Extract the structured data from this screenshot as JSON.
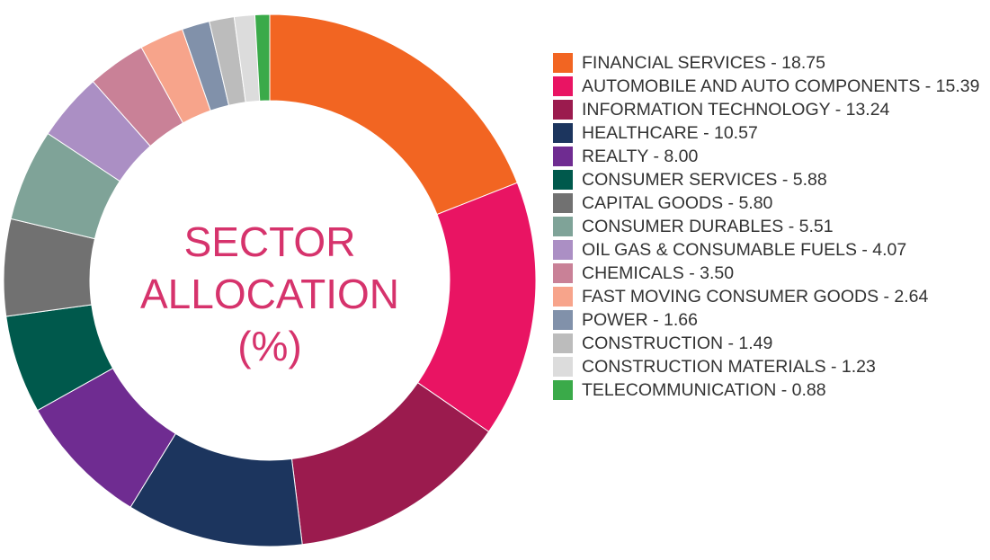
{
  "chart_data": {
    "type": "donut",
    "title": "SECTOR ALLOCATION (%)",
    "categories": [
      "FINANCIAL SERVICES - 18.75",
      "AUTOMOBILE AND AUTO COMPONENTS - 15.39",
      "INFORMATION TECHNOLOGY - 13.24",
      "HEALTHCARE - 10.57",
      "REALTY - 8.00",
      "CONSUMER SERVICES - 5.88",
      "CAPITAL GOODS - 5.80",
      "CONSUMER DURABLES - 5.51",
      "OIL GAS & CONSUMABLE FUELS - 4.07",
      "CHEMICALS - 3.50",
      "FAST MOVING CONSUMER GOODS - 2.64",
      "POWER - 1.66",
      "CONSTRUCTION - 1.49",
      "CONSTRUCTION MATERIALS - 1.23",
      "TELECOMMUNICATION - 0.88"
    ],
    "values": [
      18.75,
      15.39,
      13.24,
      10.57,
      8.0,
      5.88,
      5.8,
      5.51,
      4.07,
      3.5,
      2.64,
      1.66,
      1.49,
      1.23,
      0.88
    ],
    "colors": [
      "#f26522",
      "#e91463",
      "#9b1b4e",
      "#1c355e",
      "#6f2c91",
      "#00594c",
      "#717171",
      "#7fa398",
      "#ab8fc4",
      "#c98197",
      "#f7a48b",
      "#8191aa",
      "#bcbcbc",
      "#dcdcdc",
      "#3aaa49"
    ]
  }
}
